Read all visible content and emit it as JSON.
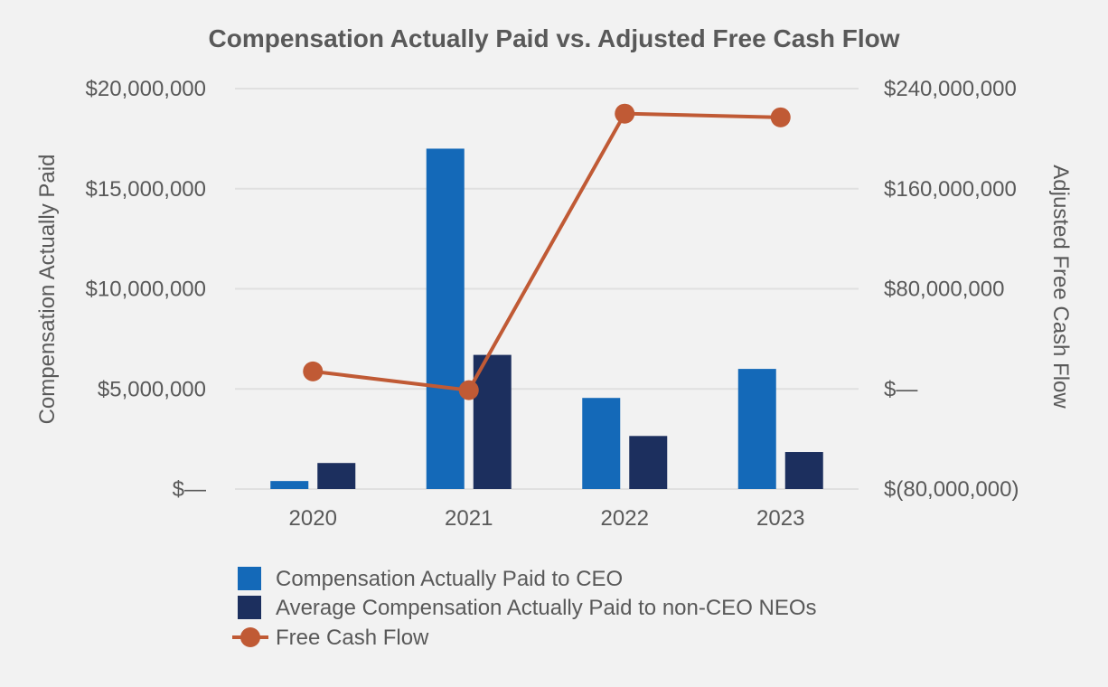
{
  "chart_data": {
    "type": "bar",
    "title": "Compensation Actually Paid vs. Adjusted Free Cash Flow",
    "categories": [
      "2020",
      "2021",
      "2022",
      "2023"
    ],
    "y_left": {
      "label": "Compensation Actually Paid",
      "min": 0,
      "max": 20000000,
      "ticks": [
        0,
        5000000,
        10000000,
        15000000,
        20000000
      ],
      "tick_labels": [
        "$—",
        "$5,000,000",
        "$10,000,000",
        "$15,000,000",
        "$20,000,000"
      ]
    },
    "y_right": {
      "label": "Adjusted Free Cash Flow",
      "min": -80000000,
      "max": 240000000,
      "ticks": [
        -80000000,
        0,
        80000000,
        160000000,
        240000000
      ],
      "tick_labels": [
        "$(80,000,000)",
        "$—",
        "$80,000,000",
        "$160,000,000",
        "$240,000,000"
      ]
    },
    "series": [
      {
        "name": "Compensation Actually Paid to CEO",
        "type": "bar",
        "axis": "left",
        "color": "#1469b8",
        "values": [
          400000,
          17000000,
          4550000,
          6000000
        ]
      },
      {
        "name": "Average Compensation Actually Paid to non-CEO NEOs",
        "type": "bar",
        "axis": "left",
        "color": "#1c2f5e",
        "values": [
          1300000,
          6700000,
          2650000,
          1850000
        ]
      },
      {
        "name": "Free Cash Flow",
        "type": "line",
        "axis": "right",
        "color": "#c05a35",
        "values": [
          14000000,
          -1000000,
          220000000,
          217000000
        ]
      }
    ],
    "grid": true,
    "legend": "bottom"
  }
}
